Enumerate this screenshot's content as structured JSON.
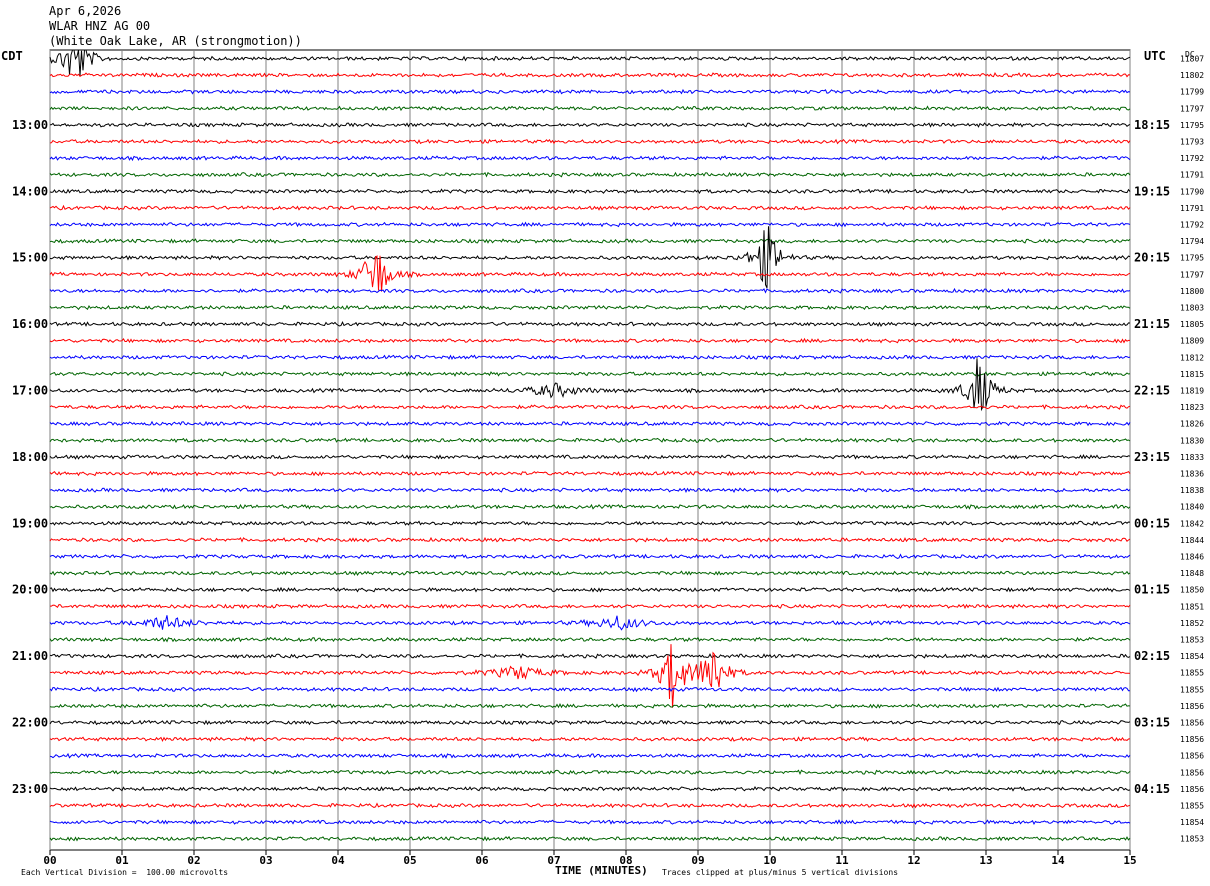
{
  "header": {
    "date": "Apr 6,2026",
    "station": "WLAR HNZ AG 00",
    "location": "(White Oak Lake, AR (strongmotion))"
  },
  "left_axis_title": "CDT",
  "right_axis_title": "UTC",
  "dc_title": "DC",
  "footer": {
    "scale_note": "Each Vertical Division =  100.00 microvolts",
    "xaxis_label": "TIME (MINUTES)",
    "clip_note": "Traces clipped at plus/minus 5 vertical divisions"
  },
  "colors": {
    "cycle": [
      "#000000",
      "#ff0000",
      "#0000ff",
      "#006400"
    ],
    "grid": "#808080"
  },
  "chart_data": {
    "type": "line",
    "title": "WLAR HNZ AG 00",
    "xlabel": "TIME (MINUTES)",
    "xlim": [
      0,
      15
    ],
    "x_ticks": [
      "00",
      "01",
      "02",
      "03",
      "04",
      "05",
      "06",
      "07",
      "08",
      "09",
      "10",
      "11",
      "12",
      "13",
      "14",
      "15"
    ],
    "left_time_labels": [
      "13:00",
      "14:00",
      "15:00",
      "16:00",
      "17:00",
      "18:00",
      "19:00",
      "20:00",
      "21:00",
      "22:00",
      "23:00"
    ],
    "left_label_rows": [
      4,
      8,
      12,
      16,
      20,
      24,
      28,
      32,
      36,
      40,
      44
    ],
    "right_time_labels": [
      "18:15",
      "19:15",
      "20:15",
      "21:15",
      "22:15",
      "23:15",
      "00:15",
      "01:15",
      "02:15",
      "03:15",
      "04:15"
    ],
    "dc_offsets": [
      11807,
      11802,
      11799,
      11797,
      11795,
      11793,
      11792,
      11791,
      11790,
      11791,
      11792,
      11794,
      11795,
      11797,
      11800,
      11803,
      11805,
      11809,
      11812,
      11815,
      11819,
      11823,
      11826,
      11830,
      11833,
      11836,
      11838,
      11840,
      11842,
      11844,
      11846,
      11848,
      11850,
      11851,
      11852,
      11853,
      11854,
      11855,
      11855,
      11856,
      11856,
      11856,
      11856,
      11856,
      11856,
      11855,
      11854,
      11853
    ],
    "series_count": 48,
    "events": [
      {
        "row": 0,
        "minute": 0.35,
        "amplitude": "large"
      },
      {
        "row": 13,
        "minute": 4.52,
        "amplitude": "large"
      },
      {
        "row": 12,
        "minute": 9.95,
        "amplitude": "large"
      },
      {
        "row": 20,
        "minute": 7.0,
        "amplitude": "medium"
      },
      {
        "row": 20,
        "minute": 12.9,
        "amplitude": "large"
      },
      {
        "row": 34,
        "minute": 1.6,
        "amplitude": "medium"
      },
      {
        "row": 34,
        "minute": 7.9,
        "amplitude": "medium"
      },
      {
        "row": 37,
        "minute": 6.5,
        "amplitude": "medium"
      },
      {
        "row": 37,
        "minute": 8.65,
        "amplitude": "large"
      },
      {
        "row": 37,
        "minute": 9.2,
        "amplitude": "large"
      }
    ]
  }
}
